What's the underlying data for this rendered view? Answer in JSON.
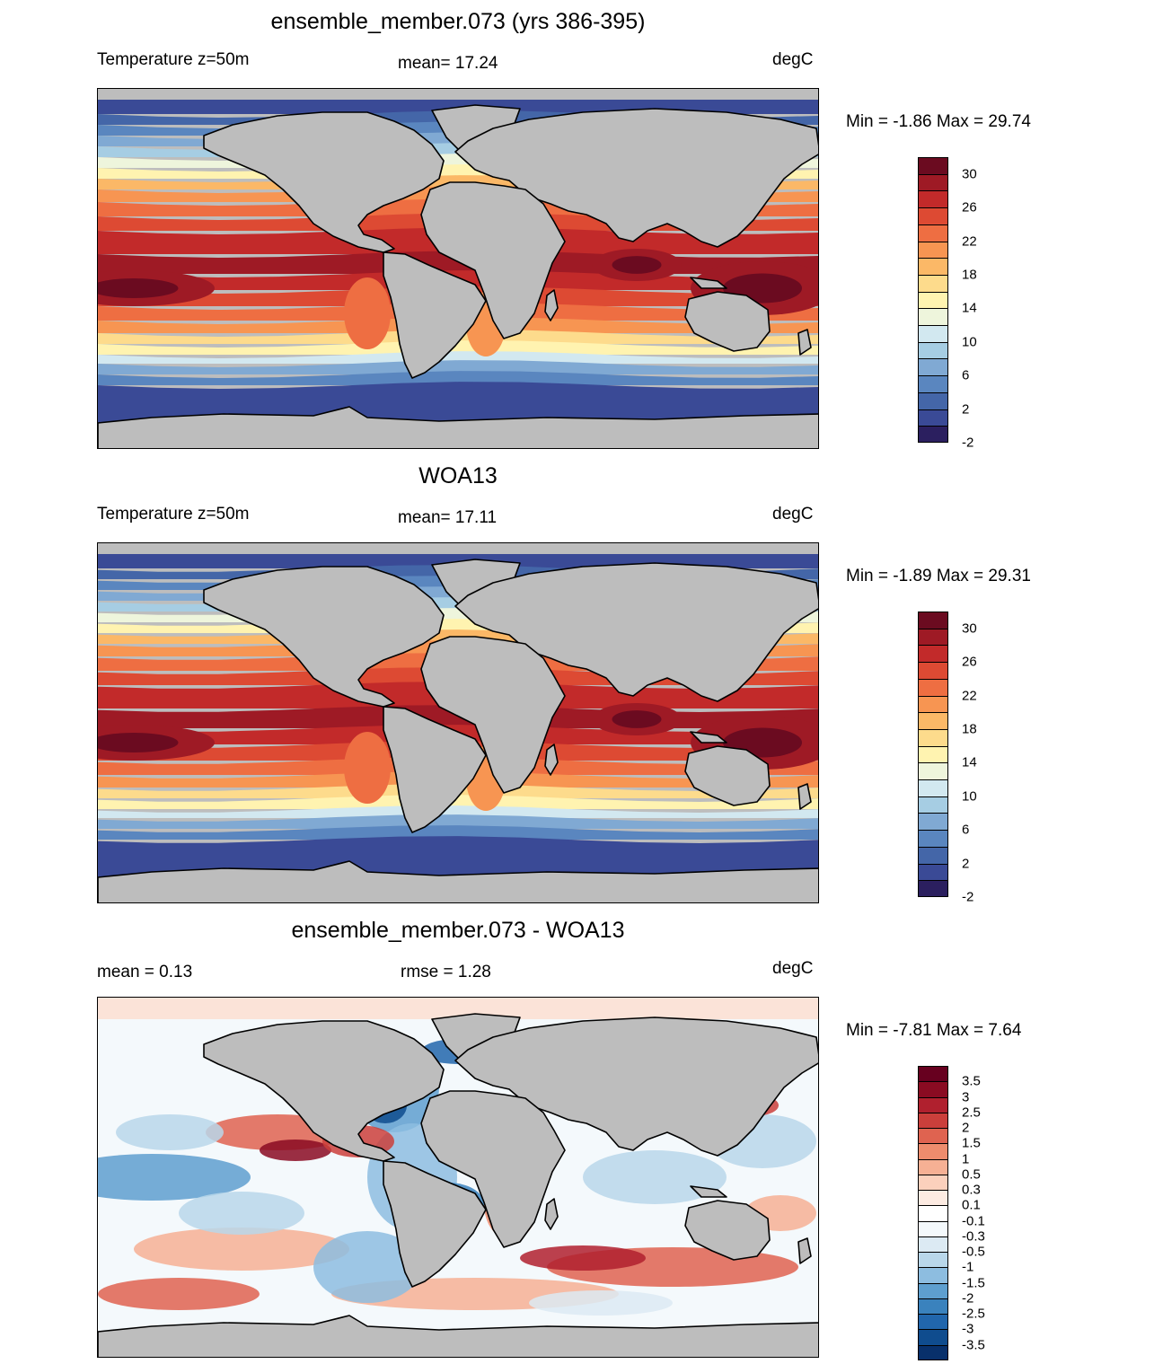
{
  "panels": [
    {
      "title": "ensemble_member.073 (yrs 386-395)",
      "left_label": "Temperature z=50m",
      "center_label": "mean=  17.24",
      "right_label": "degC",
      "minmax": "Min =  -1.86 Max =  29.74",
      "map_kind": "model",
      "colorbar": {
        "colors": [
          "#2b1f5f",
          "#3a4a96",
          "#4466a8",
          "#5a86bf",
          "#80a9d3",
          "#a6cde3",
          "#d2e8f0",
          "#eef5dc",
          "#fff3b0",
          "#fddb8c",
          "#fbb867",
          "#f79552",
          "#ee6e42",
          "#dd4a33",
          "#c22a2a",
          "#9e1a25",
          "#6b0b20"
        ],
        "ticks": [
          "30",
          "26",
          "22",
          "18",
          "14",
          "10",
          "6",
          "2",
          "-2"
        ]
      }
    },
    {
      "title": "WOA13",
      "left_label": "Temperature z=50m",
      "center_label": "mean=  17.11",
      "right_label": "degC",
      "minmax": "Min =  -1.89 Max =  29.31",
      "map_kind": "obs",
      "colorbar": {
        "colors": [
          "#2b1f5f",
          "#3a4a96",
          "#4466a8",
          "#5a86bf",
          "#80a9d3",
          "#a6cde3",
          "#d2e8f0",
          "#eef5dc",
          "#fff3b0",
          "#fddb8c",
          "#fbb867",
          "#f79552",
          "#ee6e42",
          "#dd4a33",
          "#c22a2a",
          "#9e1a25",
          "#6b0b20"
        ],
        "ticks": [
          "30",
          "26",
          "22",
          "18",
          "14",
          "10",
          "6",
          "2",
          "-2"
        ]
      }
    },
    {
      "title": "ensemble_member.073 - WOA13",
      "left_label": "mean =   0.13",
      "center_label": "rmse =   1.28",
      "right_label": "degC",
      "minmax": "Min =  -7.81 Max =   7.64",
      "map_kind": "diff",
      "colorbar": {
        "colors": [
          "#08306b",
          "#0f4c8e",
          "#2166ac",
          "#3a82bd",
          "#5e9fcf",
          "#8dbde0",
          "#b9d7ea",
          "#dceaf3",
          "#f4f9fc",
          "#ffffff",
          "#fdebe2",
          "#fbd0bc",
          "#f6b094",
          "#ee8c6d",
          "#df6350",
          "#cb3f3b",
          "#b0202e",
          "#8a0b22",
          "#67001f"
        ],
        "ticks": [
          "3.5",
          "3",
          "2.5",
          "2",
          "1.5",
          "1",
          "0.5",
          "0.3",
          "0.1",
          "-0.1",
          "-0.3",
          "-0.5",
          "-1",
          "-1.5",
          "-2",
          "-2.5",
          "-3",
          "-3.5"
        ]
      }
    }
  ],
  "colors": {
    "land": "#bdbdbd",
    "coast": "#000000"
  }
}
